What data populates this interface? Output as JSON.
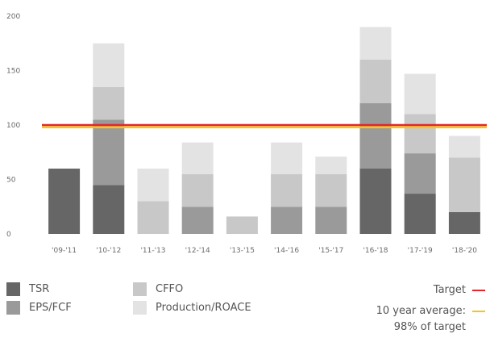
{
  "chart_data": {
    "type": "bar",
    "stacked": true,
    "categories": [
      "'09-'11",
      "'10-'12",
      "'11-'13",
      "'12-'14",
      "'13-'15",
      "'14-'16",
      "'15-'17",
      "'16-'18",
      "'17-'19",
      "'18-'20"
    ],
    "ylim": [
      0,
      200
    ],
    "yticks": [
      0,
      50,
      100,
      150,
      200
    ],
    "grid": false,
    "series": [
      {
        "name": "TSR",
        "color": "#666666",
        "values": [
          60,
          45,
          0,
          0,
          0,
          0,
          0,
          60,
          37,
          20
        ]
      },
      {
        "name": "EPS/FCF",
        "color": "#9a9a9a",
        "values": [
          0,
          60,
          0,
          25,
          0,
          25,
          25,
          60,
          37,
          0
        ]
      },
      {
        "name": "CFFO",
        "color": "#c8c8c8",
        "values": [
          0,
          30,
          30,
          30,
          16,
          30,
          30,
          40,
          36,
          50
        ]
      },
      {
        "name": "Production/ROACE",
        "color": "#e3e3e3",
        "values": [
          0,
          40,
          30,
          29,
          0,
          29,
          16,
          30,
          37,
          20
        ]
      }
    ],
    "reference_lines": [
      {
        "name": "Target",
        "value": 100,
        "color": "#e4262a"
      },
      {
        "name": "10 year average: 98% of target",
        "value": 98,
        "color": "#f5c518"
      }
    ],
    "legend_position": "bottom"
  },
  "legend": {
    "tsr": "TSR",
    "eps": "EPS/FCF",
    "cffo": "CFFO",
    "prod": "Production/ROACE",
    "target": "Target",
    "avg_line1": "10 year average:",
    "avg_line2": "98% of target"
  }
}
